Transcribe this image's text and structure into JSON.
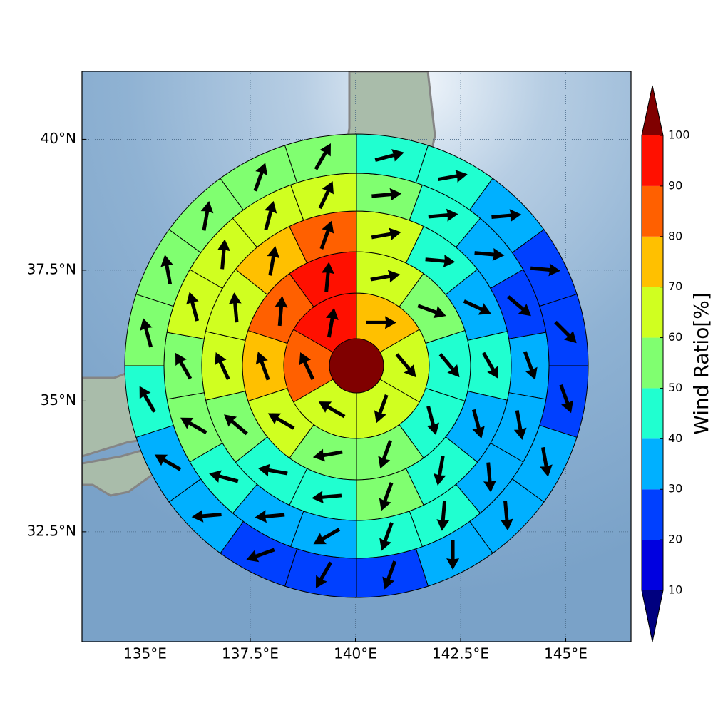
{
  "chart_data": {
    "type": "polar-grid-map",
    "xlim": [
      133.5,
      146.55
    ],
    "ylim": [
      30.4,
      41.3
    ],
    "xticks": [
      {
        "value": 135,
        "label": "135°E"
      },
      {
        "value": 137.5,
        "label": "137.5°E"
      },
      {
        "value": 140,
        "label": "140°E"
      },
      {
        "value": 142.5,
        "label": "142.5°E"
      },
      {
        "value": 145,
        "label": "145°E"
      }
    ],
    "yticks": [
      {
        "value": 32.5,
        "label": "32.5°N"
      },
      {
        "value": 35,
        "label": "35°N"
      },
      {
        "value": 37.5,
        "label": "37.5°N"
      },
      {
        "value": 40,
        "label": "40°N"
      }
    ],
    "grid": true,
    "center_value": 105,
    "rings": [
      {
        "values": [
          75,
          65,
          65,
          65,
          85,
          95
        ],
        "directions": [
          90,
          140,
          200,
          300,
          335,
          10
        ]
      },
      {
        "values": [
          65,
          55,
          45,
          45,
          55,
          55,
          65,
          75,
          85,
          95
        ],
        "directions": [
          80,
          110,
          140,
          165,
          200,
          260,
          300,
          340,
          5,
          5
        ]
      },
      {
        "values": [
          65,
          45,
          35,
          45,
          35,
          45,
          55,
          45,
          45,
          55,
          65,
          65,
          75,
          85
        ],
        "directions": [
          80,
          95,
          115,
          150,
          165,
          190,
          200,
          265,
          280,
          310,
          335,
          355,
          10,
          20
        ]
      },
      {
        "values": [
          55,
          45,
          35,
          25,
          35,
          35,
          35,
          45,
          45,
          35,
          35,
          45,
          55,
          55,
          65,
          65,
          65,
          65
        ],
        "directions": [
          85,
          85,
          95,
          130,
          160,
          170,
          175,
          185,
          200,
          240,
          265,
          285,
          300,
          330,
          345,
          5,
          15,
          25
        ]
      },
      {
        "values": [
          45,
          45,
          35,
          25,
          25,
          25,
          35,
          35,
          35,
          25,
          25,
          25,
          35,
          35,
          45,
          55,
          55,
          55,
          55,
          55
        ],
        "directions": [
          75,
          80,
          85,
          95,
          135,
          160,
          170,
          175,
          180,
          200,
          210,
          250,
          265,
          300,
          330,
          345,
          350,
          10,
          20,
          30
        ]
      }
    ],
    "colorbar": {
      "label": "Wind Ratio[%]",
      "ticks": [
        10,
        20,
        30,
        40,
        50,
        60,
        70,
        80,
        90,
        100
      ],
      "colors": [
        "#00007f",
        "#0000e0",
        "#0040ff",
        "#00b0ff",
        "#20ffd0",
        "#80ff70",
        "#d0ff20",
        "#ffc000",
        "#ff6000",
        "#ff1000",
        "#800000"
      ]
    }
  }
}
